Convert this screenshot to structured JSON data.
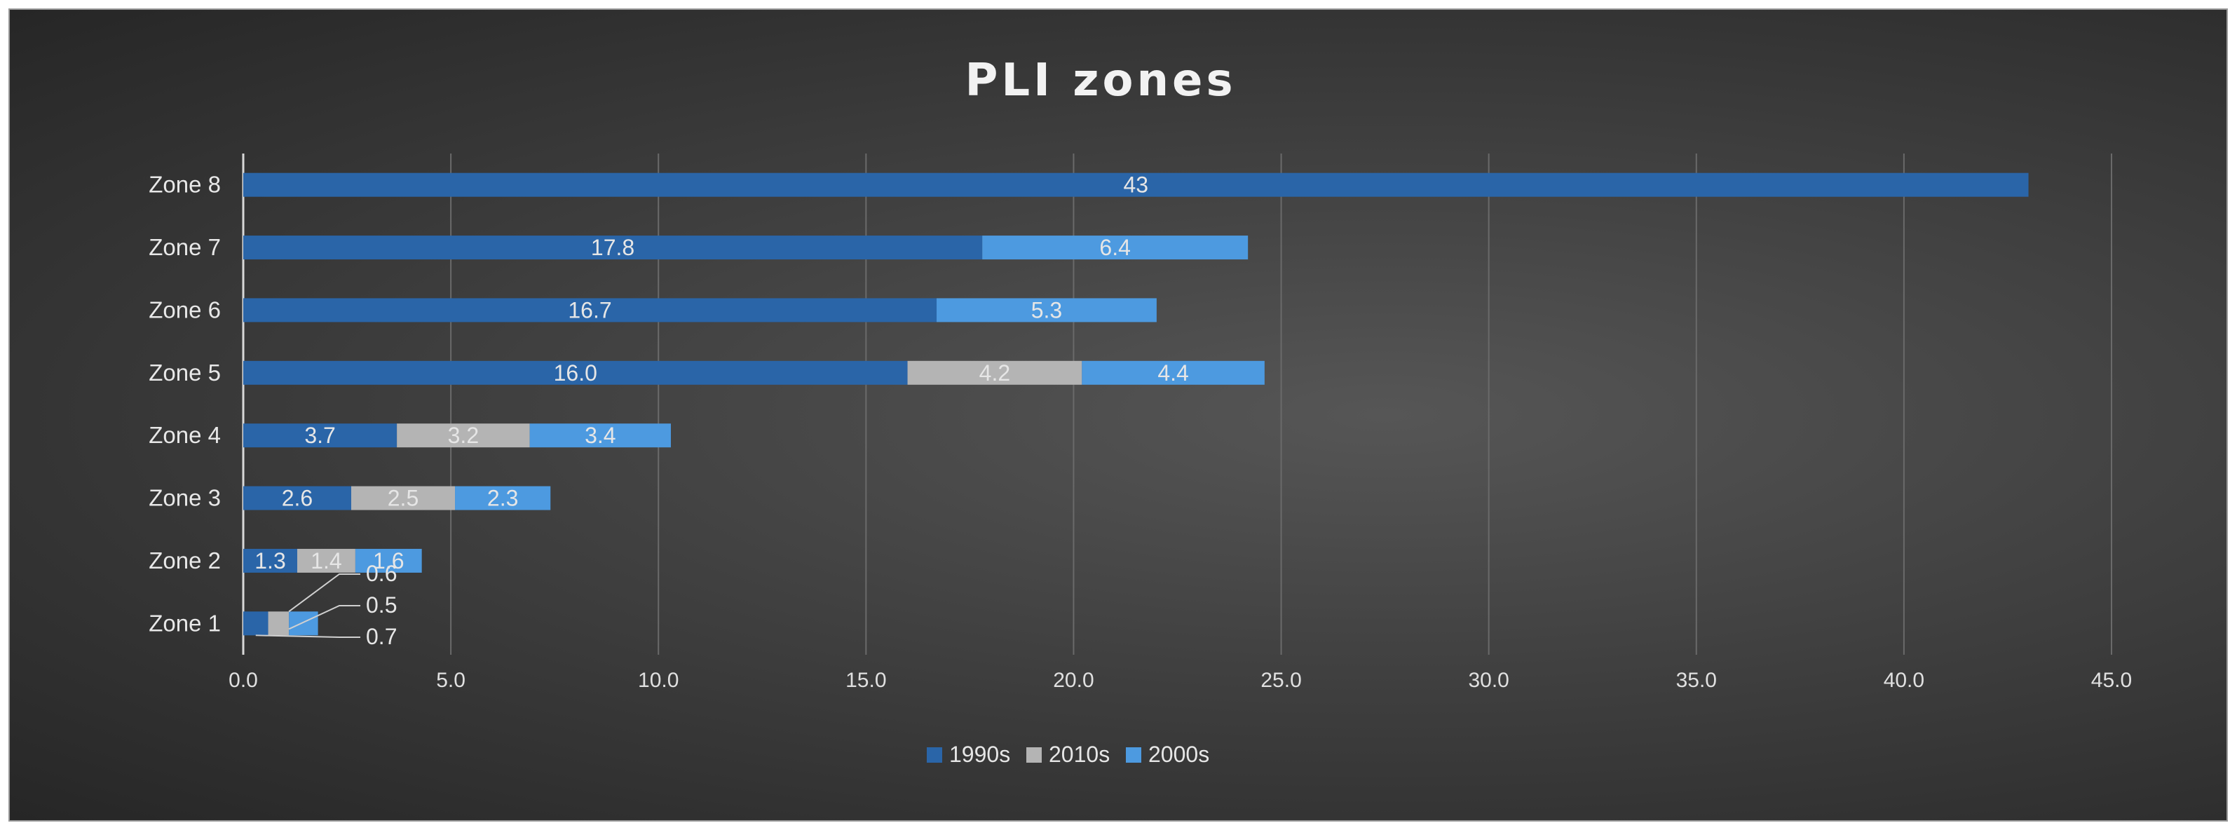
{
  "chart_data": {
    "type": "bar",
    "orientation": "horizontal",
    "stacked": true,
    "title": "PLI zones",
    "categories": [
      "Zone 1",
      "Zone 2",
      "Zone 3",
      "Zone 4",
      "Zone 5",
      "Zone 6",
      "Zone 7",
      "Zone 8"
    ],
    "series": [
      {
        "name": "1990s",
        "color": "#2a65a8",
        "values": [
          0.6,
          1.3,
          2.6,
          3.7,
          16.0,
          16.7,
          17.8,
          43
        ]
      },
      {
        "name": "2010s",
        "color": "#b4b4b4",
        "values": [
          0.5,
          1.4,
          2.5,
          3.2,
          4.2,
          null,
          null,
          null
        ]
      },
      {
        "name": "2000s",
        "color": "#4d9ae0",
        "values": [
          0.7,
          1.6,
          2.3,
          3.4,
          4.4,
          5.3,
          6.4,
          null
        ]
      }
    ],
    "data_labels": [
      [
        "0.6",
        "0.5",
        "0.7"
      ],
      [
        "1.3",
        "1.4",
        "1.6"
      ],
      [
        "2.6",
        "2.5",
        "2.3"
      ],
      [
        "3.7",
        "3.2",
        "3.4"
      ],
      [
        "16.0",
        "4.2",
        "4.4"
      ],
      [
        "16.7",
        null,
        "5.3"
      ],
      [
        "17.8",
        null,
        "6.4"
      ],
      [
        "43",
        null,
        null
      ]
    ],
    "xlim": [
      0,
      45
    ],
    "xticks": [
      "0.0",
      "5.0",
      "10.0",
      "15.0",
      "20.0",
      "25.0",
      "30.0",
      "35.0",
      "40.0",
      "45.0"
    ],
    "grid": true,
    "legend_position": "bottom"
  }
}
